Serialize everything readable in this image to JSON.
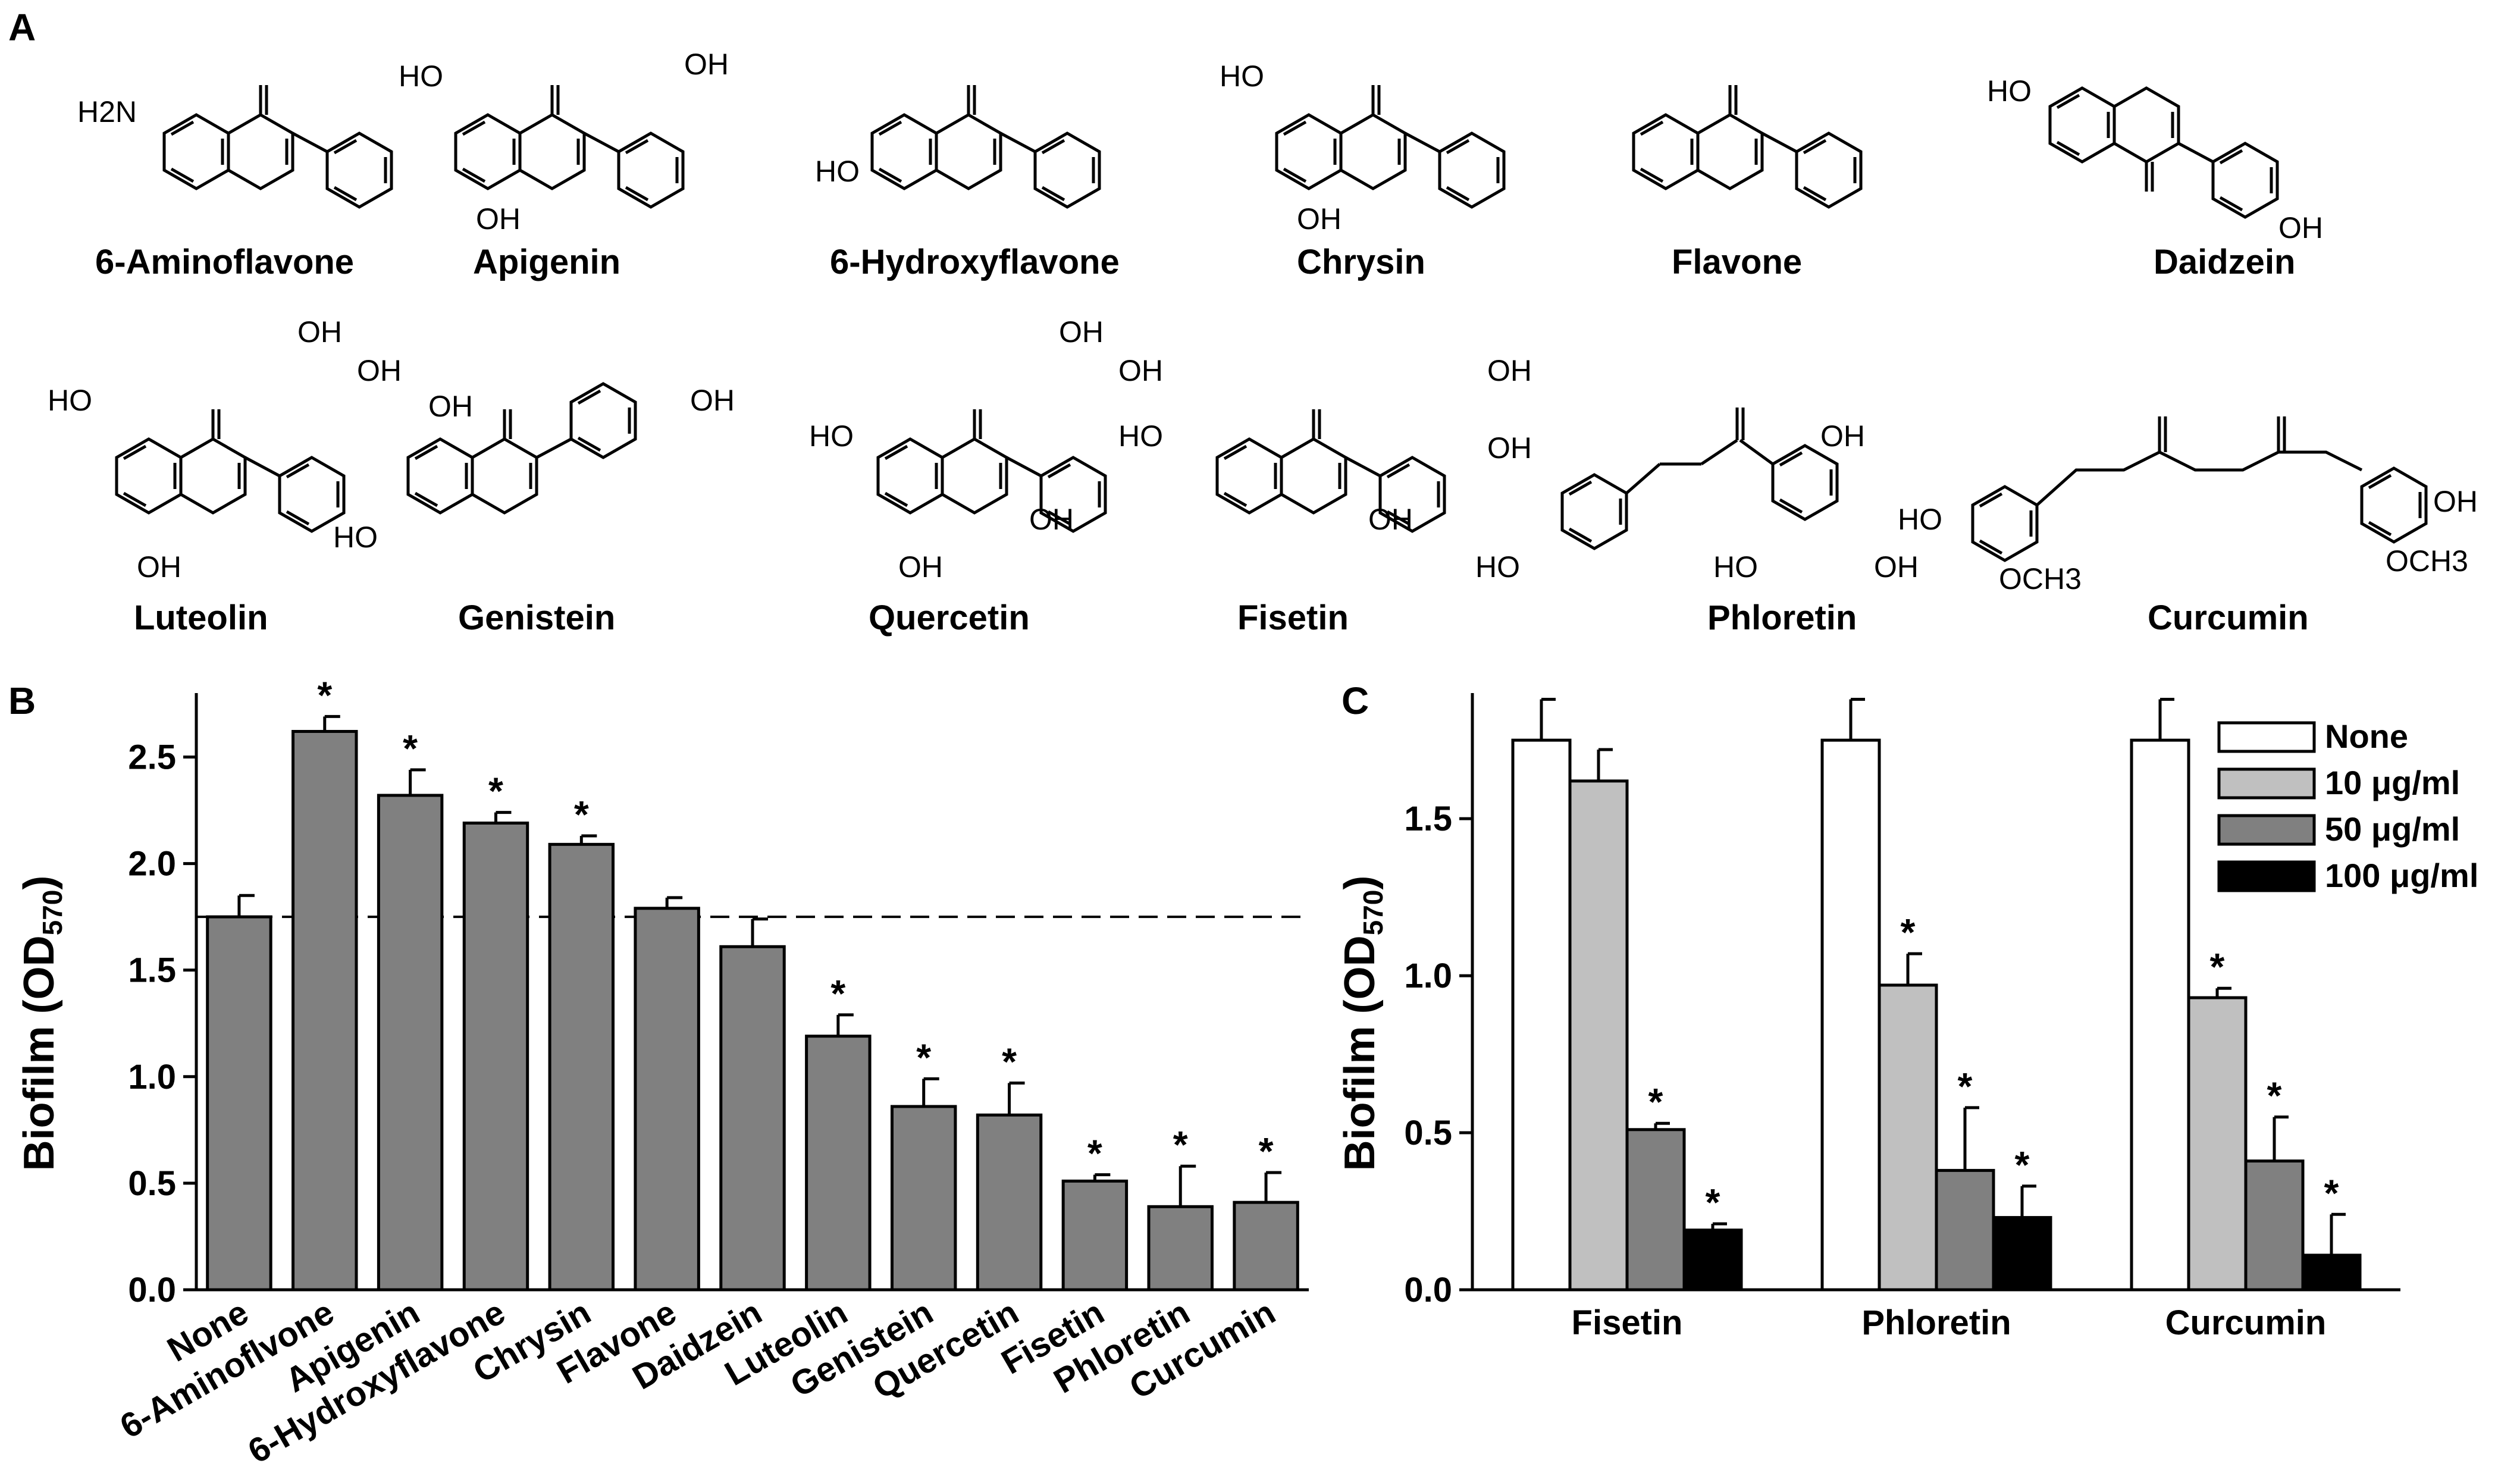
{
  "panels": {
    "a": "A",
    "b": "B",
    "c": "C"
  },
  "compounds": [
    {
      "name": "6-Aminoflavone",
      "groups": [
        "H2N"
      ]
    },
    {
      "name": "Apigenin",
      "groups": [
        "HO",
        "OH",
        "OH"
      ]
    },
    {
      "name": "6-Hydroxyflavone",
      "groups": [
        "HO"
      ]
    },
    {
      "name": "Chrysin",
      "groups": [
        "HO",
        "OH"
      ]
    },
    {
      "name": "Flavone",
      "groups": []
    },
    {
      "name": "Daidzein",
      "groups": [
        "HO",
        "OH"
      ]
    },
    {
      "name": "Luteolin",
      "groups": [
        "HO",
        "OH",
        "OH",
        "OH"
      ]
    },
    {
      "name": "Genistein",
      "groups": [
        "HO",
        "OH",
        "OH"
      ]
    },
    {
      "name": "Quercetin",
      "groups": [
        "HO",
        "OH",
        "OH",
        "OH",
        "OH"
      ]
    },
    {
      "name": "Fisetin",
      "groups": [
        "HO",
        "OH",
        "OH",
        "OH"
      ]
    },
    {
      "name": "Phloretin",
      "groups": [
        "HO",
        "OH",
        "HO",
        "OH"
      ]
    },
    {
      "name": "Curcumin",
      "groups": [
        "HO",
        "OCH3",
        "OCH3",
        "OH"
      ]
    }
  ],
  "chart_data": [
    {
      "panel": "B",
      "type": "bar",
      "ylabel": "Biofilm (OD570)",
      "ylabel_main": "Biofilm (OD",
      "ylabel_sub": "570",
      "ylabel_close": ")",
      "ylim": [
        0,
        2.8
      ],
      "yticks": [
        "0.0",
        "0.5",
        "1.0",
        "1.5",
        "2.0",
        "2.5"
      ],
      "categories": [
        "None",
        "6-Aminoflvone",
        "Apigenin",
        "6-Hydroxyflavone",
        "Chrysin",
        "Flavone",
        "Daidzein",
        "Luteolin",
        "Genistein",
        "Quercetin",
        "Fisetin",
        "Phloretin",
        "Curcumin"
      ],
      "values": [
        1.75,
        2.62,
        2.32,
        2.19,
        2.09,
        1.79,
        1.61,
        1.19,
        0.86,
        0.82,
        0.51,
        0.39,
        0.41
      ],
      "errors": [
        0.1,
        0.07,
        0.12,
        0.05,
        0.04,
        0.05,
        0.13,
        0.1,
        0.13,
        0.15,
        0.03,
        0.19,
        0.14
      ],
      "significant": [
        false,
        true,
        true,
        true,
        true,
        false,
        false,
        true,
        true,
        true,
        true,
        true,
        true
      ],
      "star": "*",
      "reference_line": 1.75,
      "bar_color": "#808080"
    },
    {
      "panel": "C",
      "type": "bar",
      "ylabel": "Biofilm (OD570)",
      "ylabel_main": "Biofilm (OD",
      "ylabel_sub": "570",
      "ylabel_close": ")",
      "ylim": [
        0,
        1.9
      ],
      "yticks": [
        "0.0",
        "0.5",
        "1.0",
        "1.5"
      ],
      "categories": [
        "Fisetin",
        "Phloretin",
        "Curcumin"
      ],
      "series": [
        {
          "name": "None",
          "color": "#ffffff",
          "values": [
            1.75,
            1.75,
            1.75
          ],
          "errors": [
            0.13,
            0.13,
            0.13
          ],
          "significant": [
            false,
            false,
            false
          ]
        },
        {
          "name": "10 μg/ml",
          "color": "#c0c0c0",
          "values": [
            1.62,
            0.97,
            0.93
          ],
          "errors": [
            0.1,
            0.1,
            0.03
          ],
          "significant": [
            false,
            true,
            true
          ]
        },
        {
          "name": "50 μg/ml",
          "color": "#808080",
          "values": [
            0.51,
            0.38,
            0.41
          ],
          "errors": [
            0.02,
            0.2,
            0.14
          ],
          "significant": [
            true,
            true,
            true
          ]
        },
        {
          "name": "100 μg/ml",
          "color": "#000000",
          "values": [
            0.19,
            0.23,
            0.11
          ],
          "errors": [
            0.02,
            0.1,
            0.13
          ],
          "significant": [
            true,
            true,
            true
          ]
        }
      ],
      "star": "*",
      "legend_position": "top-right"
    }
  ]
}
